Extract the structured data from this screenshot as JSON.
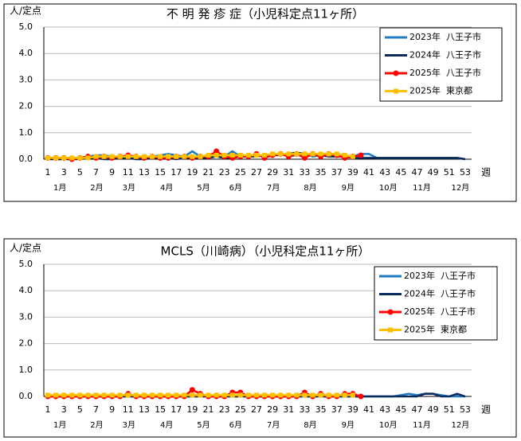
{
  "chart_data": [
    {
      "type": "line",
      "title": "不 明 発 疹 症（小児科定点11ヶ所）",
      "ylabel": "人/定点",
      "xlabel": "週",
      "x": [
        1,
        2,
        3,
        4,
        5,
        6,
        7,
        8,
        9,
        10,
        11,
        12,
        13,
        14,
        15,
        16,
        17,
        18,
        19,
        20,
        21,
        22,
        23,
        24,
        25,
        26,
        27,
        28,
        29,
        30,
        31,
        32,
        33,
        34,
        35,
        36,
        37,
        38,
        39,
        40,
        41,
        42,
        43,
        44,
        45,
        46,
        47,
        48,
        49,
        50,
        51,
        52,
        53
      ],
      "xlim": [
        0.5,
        53.8
      ],
      "xticks": [
        1,
        3,
        5,
        7,
        9,
        11,
        13,
        15,
        17,
        19,
        21,
        23,
        25,
        27,
        29,
        31,
        33,
        35,
        37,
        39,
        41,
        43,
        45,
        47,
        49,
        51,
        53
      ],
      "month_ticks": [
        {
          "value": 2.5,
          "label": "1月"
        },
        {
          "value": 7.1,
          "label": "2月"
        },
        {
          "value": 11.1,
          "label": "3月"
        },
        {
          "value": 15.8,
          "label": "4月"
        },
        {
          "value": 20.4,
          "label": "5月"
        },
        {
          "value": 24.4,
          "label": "6月"
        },
        {
          "value": 29.1,
          "label": "7月"
        },
        {
          "value": 33.7,
          "label": "8月"
        },
        {
          "value": 38.4,
          "label": "9月"
        },
        {
          "value": 43.4,
          "label": "10月"
        },
        {
          "value": 47.6,
          "label": "11月"
        },
        {
          "value": 52.4,
          "label": "12月"
        }
      ],
      "ylim": [
        0,
        5
      ],
      "yticks": [
        {
          "value": 0,
          "label": "0.0"
        },
        {
          "value": 1,
          "label": "1.0"
        },
        {
          "value": 2,
          "label": "2.0"
        },
        {
          "value": 3,
          "label": "3.0"
        },
        {
          "value": 4,
          "label": "4.0"
        },
        {
          "value": 5,
          "label": "5.0"
        }
      ],
      "grid": true,
      "series": [
        {
          "name": "2023年  八王子市",
          "color": "#1f7bc0",
          "marker": "none",
          "values": [
            0.05,
            0.05,
            0.05,
            0.05,
            0.05,
            0.1,
            0.15,
            0.15,
            0.1,
            0.05,
            0.1,
            0.1,
            0.05,
            0.1,
            0.15,
            0.2,
            0.15,
            0.1,
            0.3,
            0.1,
            0.15,
            0.2,
            0.1,
            0.3,
            0.1,
            0.1,
            0.15,
            0.1,
            0.15,
            0.2,
            0.1,
            0.15,
            0.2,
            0.1,
            0.15,
            0.2,
            0.2,
            0.15,
            0.1,
            0.2,
            0.2,
            0.05,
            0.05,
            0.05,
            0.05,
            0.05,
            0.05,
            0.05,
            0.05,
            0.05,
            0.05,
            0.05,
            0
          ]
        },
        {
          "name": "2024年  八王子市",
          "color": "#0b2a5c",
          "marker": "none",
          "values": [
            0,
            0,
            0,
            0,
            0,
            0.05,
            0.05,
            0,
            0,
            0.05,
            0.05,
            0,
            0,
            0.05,
            0.05,
            0.05,
            0,
            0.05,
            0.05,
            0.05,
            0.05,
            0.1,
            0.05,
            0.05,
            0.1,
            0.1,
            0.1,
            0.15,
            0.15,
            0.15,
            0.2,
            0.25,
            0.2,
            0.15,
            0.15,
            0.1,
            0.1,
            0.1,
            0.05,
            0.05,
            0.05,
            0.05,
            0.05,
            0.05,
            0.05,
            0.05,
            0.05,
            0.05,
            0.05,
            0.05,
            0.05,
            0.05,
            0
          ]
        },
        {
          "name": "2025年  八王子市",
          "color": "#ff0000",
          "marker": "circle",
          "values": [
            0.05,
            0.05,
            0.05,
            0,
            0.05,
            0.1,
            0.05,
            0.1,
            0.05,
            0.1,
            0.15,
            0.1,
            0.05,
            0.1,
            0.05,
            0.05,
            0.1,
            0.1,
            0.05,
            0.1,
            0.1,
            0.3,
            0.1,
            0.05,
            0.1,
            0.1,
            0.2,
            0.05,
            0.15,
            0.2,
            0.1,
            0.2,
            0.05,
            0.2,
            0.1,
            0.2,
            0.15,
            0.05,
            0.1,
            0.15,
            null,
            null,
            null,
            null,
            null,
            null,
            null,
            null,
            null,
            null,
            null,
            null,
            null
          ]
        },
        {
          "name": "2025年  東京都",
          "color": "#ffc000",
          "marker": "square",
          "values": [
            0.05,
            0.05,
            0.05,
            0.05,
            0.05,
            0.05,
            0.1,
            0.1,
            0.1,
            0.1,
            0.1,
            0.1,
            0.1,
            0.1,
            0.1,
            0.1,
            0.1,
            0.1,
            0.1,
            0.1,
            0.15,
            0.15,
            0.15,
            0.15,
            0.15,
            0.15,
            0.15,
            0.15,
            0.2,
            0.2,
            0.2,
            0.2,
            0.2,
            0.2,
            0.2,
            0.2,
            0.2,
            0.15,
            0.1,
            null,
            null,
            null,
            null,
            null,
            null,
            null,
            null,
            null,
            null,
            null,
            null,
            null,
            null
          ]
        }
      ]
    },
    {
      "type": "line",
      "title": "MCLS（川崎病）（小児科定点11ヶ所）",
      "ylabel": "人/定点",
      "xlabel": "週",
      "x": [
        1,
        2,
        3,
        4,
        5,
        6,
        7,
        8,
        9,
        10,
        11,
        12,
        13,
        14,
        15,
        16,
        17,
        18,
        19,
        20,
        21,
        22,
        23,
        24,
        25,
        26,
        27,
        28,
        29,
        30,
        31,
        32,
        33,
        34,
        35,
        36,
        37,
        38,
        39,
        40,
        41,
        42,
        43,
        44,
        45,
        46,
        47,
        48,
        49,
        50,
        51,
        52,
        53
      ],
      "xlim": [
        0.5,
        53.8
      ],
      "xticks": [
        1,
        3,
        5,
        7,
        9,
        11,
        13,
        15,
        17,
        19,
        21,
        23,
        25,
        27,
        29,
        31,
        33,
        35,
        37,
        39,
        41,
        43,
        45,
        47,
        49,
        51,
        53
      ],
      "month_ticks": [
        {
          "value": 2.5,
          "label": "1月"
        },
        {
          "value": 7.1,
          "label": "2月"
        },
        {
          "value": 11.1,
          "label": "3月"
        },
        {
          "value": 15.8,
          "label": "4月"
        },
        {
          "value": 20.4,
          "label": "5月"
        },
        {
          "value": 24.4,
          "label": "6月"
        },
        {
          "value": 29.1,
          "label": "7月"
        },
        {
          "value": 33.7,
          "label": "8月"
        },
        {
          "value": 38.4,
          "label": "9月"
        },
        {
          "value": 43.4,
          "label": "10月"
        },
        {
          "value": 47.6,
          "label": "11月"
        },
        {
          "value": 52.4,
          "label": "12月"
        }
      ],
      "ylim": [
        0,
        5
      ],
      "yticks": [
        {
          "value": 0,
          "label": "0.0"
        },
        {
          "value": 1,
          "label": "1.0"
        },
        {
          "value": 2,
          "label": "2.0"
        },
        {
          "value": 3,
          "label": "3.0"
        },
        {
          "value": 4,
          "label": "4.0"
        },
        {
          "value": 5,
          "label": "5.0"
        }
      ],
      "grid": true,
      "series": [
        {
          "name": "2023年  八王子市",
          "color": "#1f7bc0",
          "marker": "none",
          "values": [
            0,
            0,
            0,
            0,
            0,
            0,
            0,
            0,
            0,
            0,
            0,
            0,
            0,
            0,
            0,
            0,
            0,
            0,
            0,
            0,
            0,
            0,
            0,
            0,
            0,
            0,
            0,
            0,
            0,
            0,
            0,
            0,
            0,
            0,
            0,
            0,
            0,
            0,
            0,
            0,
            0,
            0,
            0,
            0,
            0.05,
            0.1,
            0.05,
            0.1,
            0.1,
            0.05,
            0,
            0,
            0
          ]
        },
        {
          "name": "2024年  八王子市",
          "color": "#0b2a5c",
          "marker": "none",
          "values": [
            0,
            0,
            0,
            0,
            0,
            0,
            0,
            0,
            0,
            0,
            0,
            0,
            0,
            0,
            0,
            0,
            0,
            0,
            0,
            0,
            0,
            0,
            0,
            0,
            0,
            0,
            0,
            0,
            0,
            0,
            0,
            0,
            0,
            0,
            0,
            0,
            0,
            0,
            0,
            0,
            0,
            0,
            0,
            0,
            0,
            0,
            0,
            0.1,
            0.1,
            0,
            0,
            0.1,
            0
          ]
        },
        {
          "name": "2025年  八王子市",
          "color": "#ff0000",
          "marker": "circle",
          "values": [
            0,
            0,
            0,
            0,
            0,
            0,
            0,
            0,
            0,
            0,
            0.1,
            0,
            0,
            0,
            0,
            0,
            0,
            0,
            0.25,
            0.1,
            0,
            0,
            0,
            0.15,
            0.15,
            0,
            0,
            0,
            0,
            0,
            0,
            0,
            0.15,
            0,
            0.1,
            0,
            0,
            0.1,
            0.1,
            0,
            null,
            null,
            null,
            null,
            null,
            null,
            null,
            null,
            null,
            null,
            null,
            null,
            null
          ]
        },
        {
          "name": "2025年  東京都",
          "color": "#ffc000",
          "marker": "square",
          "values": [
            0.05,
            0.05,
            0.05,
            0.05,
            0.05,
            0.05,
            0.05,
            0.05,
            0.05,
            0.05,
            0.05,
            0.05,
            0.05,
            0.05,
            0.05,
            0.05,
            0.05,
            0.05,
            0.05,
            0.05,
            0.05,
            0.05,
            0.05,
            0.05,
            0.05,
            0.05,
            0.05,
            0.05,
            0.05,
            0.05,
            0.05,
            0.05,
            0.05,
            0.05,
            0.05,
            0.05,
            0.05,
            0.05,
            0.05,
            null,
            null,
            null,
            null,
            null,
            null,
            null,
            null,
            null,
            null,
            null,
            null,
            null,
            null
          ]
        }
      ]
    }
  ]
}
